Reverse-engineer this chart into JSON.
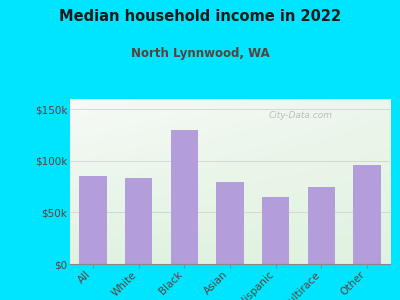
{
  "title": "Median household income in 2022",
  "subtitle": "North Lynnwood, WA",
  "categories": [
    "All",
    "White",
    "Black",
    "Asian",
    "Hispanic",
    "Multirace",
    "Other"
  ],
  "values": [
    85000,
    83000,
    130000,
    80000,
    65000,
    75000,
    96000
  ],
  "bar_color": "#b39ddb",
  "background_outer": "#00e5ff",
  "title_color": "#1a1a1a",
  "subtitle_color": "#5d4037",
  "tick_color": "#5d4037",
  "watermark": "City-Data.com",
  "ylim": [
    0,
    160000
  ],
  "yticks": [
    0,
    50000,
    100000,
    150000
  ],
  "ytick_labels": [
    "$0",
    "$50k",
    "$100k",
    "$150k"
  ]
}
